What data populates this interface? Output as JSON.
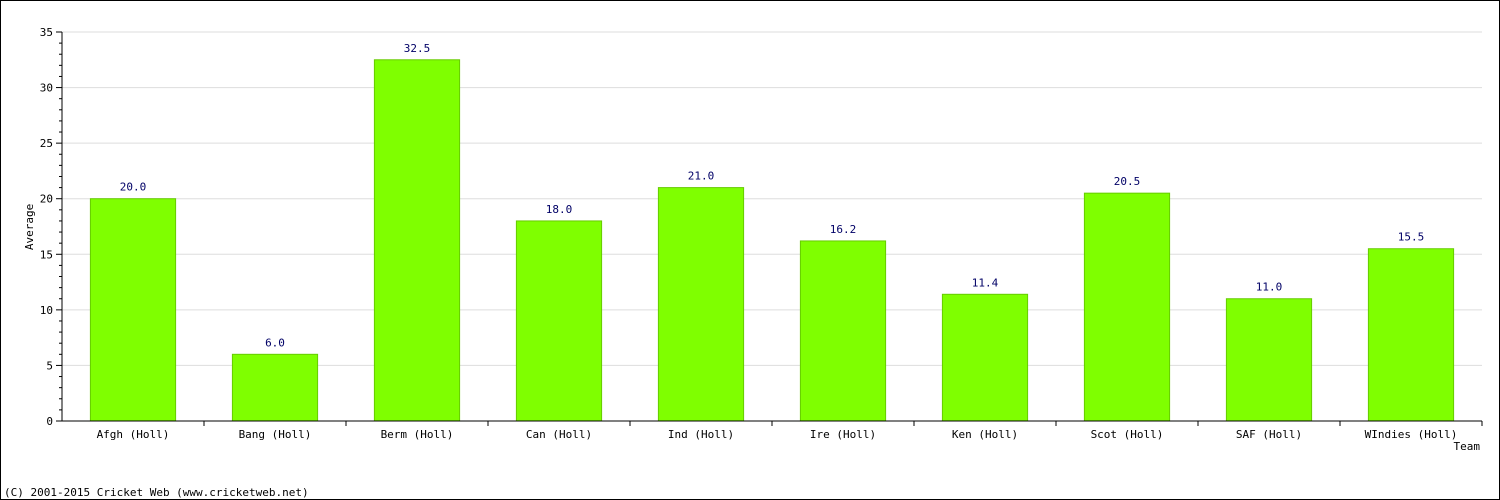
{
  "chart_data": {
    "type": "bar",
    "categories": [
      "Afgh (Holl)",
      "Bang (Holl)",
      "Berm (Holl)",
      "Can (Holl)",
      "Ind (Holl)",
      "Ire (Holl)",
      "Ken (Holl)",
      "Scot (Holl)",
      "SAF (Holl)",
      "WIndies (Holl)"
    ],
    "values": [
      20.0,
      6.0,
      32.5,
      18.0,
      21.0,
      16.2,
      11.4,
      20.5,
      11.0,
      15.5
    ],
    "value_labels": [
      "20.0",
      "6.0",
      "32.5",
      "18.0",
      "21.0",
      "16.2",
      "11.4",
      "20.5",
      "11.0",
      "15.5"
    ],
    "title": "",
    "xlabel": "Team",
    "ylabel": "Average",
    "ylim": [
      0,
      35
    ],
    "yticks": [
      0,
      5,
      10,
      15,
      20,
      25,
      30,
      35
    ],
    "grid": true,
    "legend": "none",
    "bar_color": "#7fff00",
    "value_label_color": "#000066",
    "grid_color": "#dddddd"
  },
  "footer": {
    "copyright": "(C) 2001-2015 Cricket Web (www.cricketweb.net)"
  }
}
